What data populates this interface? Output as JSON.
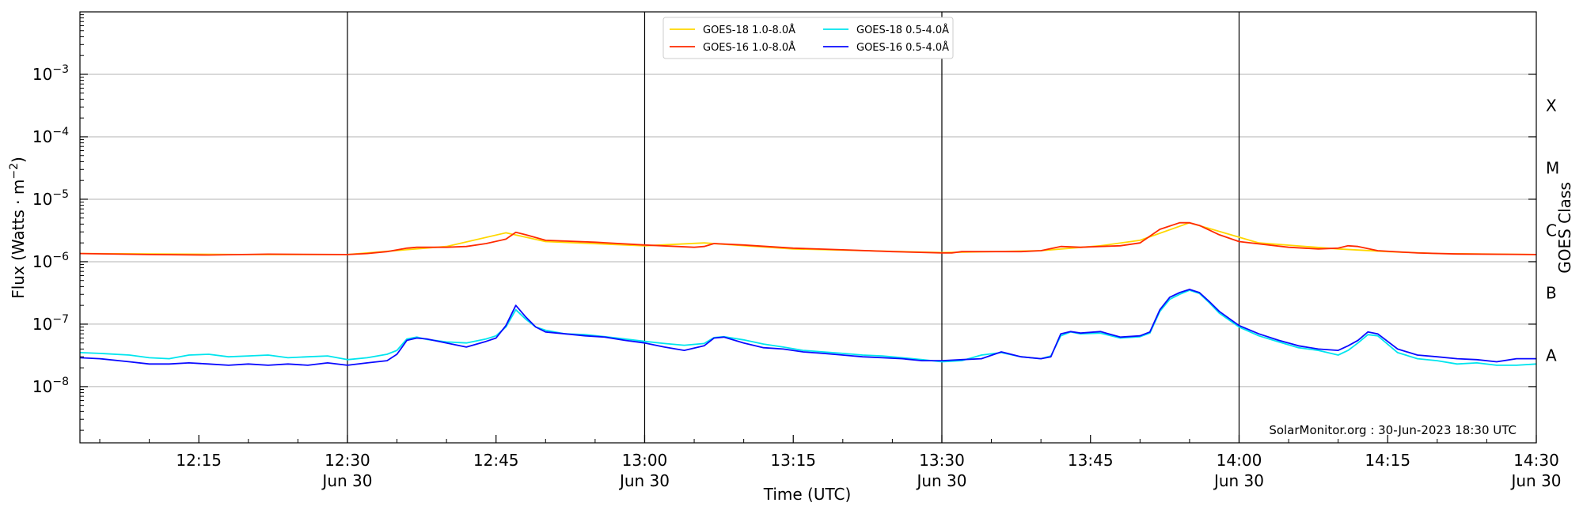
{
  "chart_data": {
    "type": "line",
    "xlabel": "Time (UTC)",
    "ylabel_base": "Flux (Watts · m",
    "ylabel_exp": "−2",
    "ylabel_end": ")",
    "right_label": "GOES Class",
    "credit": "SolarMonitor.org : 30-Jun-2023 18:30 UTC",
    "xlim_minutes": [
      723,
      870
    ],
    "ylim_log10": [
      -8.9,
      -2.0
    ],
    "y_scale": "log",
    "grid": "horizontal",
    "legend_position": "upper-center",
    "x_ticks": [
      {
        "minute": 735,
        "label": "12:15",
        "date": ""
      },
      {
        "minute": 750,
        "label": "12:30",
        "date": "Jun 30"
      },
      {
        "minute": 765,
        "label": "12:45",
        "date": ""
      },
      {
        "minute": 780,
        "label": "13:00",
        "date": "Jun 30"
      },
      {
        "minute": 795,
        "label": "13:15",
        "date": ""
      },
      {
        "minute": 810,
        "label": "13:30",
        "date": "Jun 30"
      },
      {
        "minute": 825,
        "label": "13:45",
        "date": ""
      },
      {
        "minute": 840,
        "label": "14:00",
        "date": "Jun 30"
      },
      {
        "minute": 855,
        "label": "14:15",
        "date": ""
      },
      {
        "minute": 870,
        "label": "14:30",
        "date": "Jun 30"
      }
    ],
    "vlines_minutes": [
      750,
      780,
      810,
      840
    ],
    "y_ticks": [
      {
        "exp": -8,
        "base": "10",
        "sup": "−8"
      },
      {
        "exp": -7,
        "base": "10",
        "sup": "−7"
      },
      {
        "exp": -6,
        "base": "10",
        "sup": "−6"
      },
      {
        "exp": -5,
        "base": "10",
        "sup": "−5"
      },
      {
        "exp": -4,
        "base": "10",
        "sup": "−4"
      },
      {
        "exp": -3,
        "base": "10",
        "sup": "−3"
      }
    ],
    "goes_classes": [
      {
        "label": "A",
        "exp": -7.5
      },
      {
        "label": "B",
        "exp": -6.5
      },
      {
        "label": "C",
        "exp": -5.5
      },
      {
        "label": "M",
        "exp": -4.5
      },
      {
        "label": "X",
        "exp": -3.5
      }
    ],
    "series": [
      {
        "name": "GOES-18 1.0-8.0Å",
        "color": "#ffd700",
        "x": [
          723,
          740,
          750,
          760,
          766,
          770,
          780,
          786,
          795,
          810,
          820,
          826,
          830,
          835,
          842,
          850,
          855,
          860,
          870
        ],
        "y": [
          1.35e-06,
          1.3e-06,
          1.3e-06,
          1.75e-06,
          2.9e-06,
          2.1e-06,
          1.8e-06,
          2e-06,
          1.6e-06,
          1.4e-06,
          1.5e-06,
          1.8e-06,
          2.2e-06,
          4.2e-06,
          2e-06,
          1.6e-06,
          1.45e-06,
          1.35e-06,
          1.3e-06
        ]
      },
      {
        "name": "GOES-16 1.0-8.0Å",
        "color": "#ff2a00",
        "x": [
          723,
          730,
          736,
          742,
          750,
          752,
          754,
          756,
          757,
          760,
          762,
          764,
          766,
          767,
          768,
          770,
          775,
          780,
          785,
          786,
          787,
          790,
          795,
          800,
          805,
          810,
          811,
          812,
          814,
          818,
          820,
          822,
          824,
          826,
          828,
          830,
          832,
          834,
          835,
          836,
          838,
          840,
          845,
          848,
          850,
          851,
          852,
          854,
          858,
          862,
          870
        ],
        "y": [
          1.35e-06,
          1.3e-06,
          1.28e-06,
          1.32e-06,
          1.3e-06,
          1.35e-06,
          1.45e-06,
          1.65e-06,
          1.7e-06,
          1.7e-06,
          1.75e-06,
          1.95e-06,
          2.3e-06,
          2.95e-06,
          2.7e-06,
          2.2e-06,
          2.05e-06,
          1.85e-06,
          1.7e-06,
          1.75e-06,
          1.95e-06,
          1.85e-06,
          1.65e-06,
          1.55e-06,
          1.45e-06,
          1.38e-06,
          1.38e-06,
          1.45e-06,
          1.45e-06,
          1.45e-06,
          1.5e-06,
          1.75e-06,
          1.7e-06,
          1.75e-06,
          1.8e-06,
          2e-06,
          3.3e-06,
          4.2e-06,
          4.2e-06,
          3.8e-06,
          2.7e-06,
          2.1e-06,
          1.7e-06,
          1.6e-06,
          1.65e-06,
          1.8e-06,
          1.75e-06,
          1.5e-06,
          1.38e-06,
          1.33e-06,
          1.3e-06
        ]
      },
      {
        "name": "GOES-18 0.5-4.0Å",
        "color": "#00e5ee",
        "x": [
          723,
          725,
          728,
          730,
          732,
          734,
          736,
          738,
          740,
          742,
          744,
          746,
          748,
          750,
          752,
          754,
          755,
          756,
          757,
          758,
          760,
          762,
          764,
          765,
          766,
          767,
          768,
          769,
          770,
          772,
          774,
          776,
          778,
          780,
          782,
          784,
          786,
          787,
          788,
          790,
          792,
          794,
          796,
          798,
          800,
          802,
          804,
          806,
          808,
          810,
          812,
          814,
          816,
          818,
          820,
          821,
          822,
          823,
          824,
          826,
          828,
          830,
          831,
          832,
          833,
          834,
          835,
          836,
          837,
          838,
          840,
          842,
          844,
          846,
          848,
          850,
          851,
          852,
          853,
          854,
          856,
          858,
          860,
          862,
          864,
          866,
          868,
          870
        ],
        "y": [
          3.5e-08,
          3.4e-08,
          3.2e-08,
          2.9e-08,
          2.8e-08,
          3.2e-08,
          3.3e-08,
          3e-08,
          3.1e-08,
          3.2e-08,
          2.9e-08,
          3e-08,
          3.1e-08,
          2.7e-08,
          2.9e-08,
          3.3e-08,
          3.8e-08,
          5.8e-08,
          6.2e-08,
          5.7e-08,
          5.2e-08,
          5e-08,
          5.8e-08,
          6.5e-08,
          9e-08,
          1.7e-07,
          1.2e-07,
          9e-08,
          8e-08,
          7e-08,
          6.8e-08,
          6.3e-08,
          5.8e-08,
          5.3e-08,
          4.9e-08,
          4.6e-08,
          4.9e-08,
          6.1e-08,
          6.3e-08,
          5.6e-08,
          4.8e-08,
          4.3e-08,
          3.8e-08,
          3.6e-08,
          3.4e-08,
          3.2e-08,
          3.1e-08,
          2.9e-08,
          2.7e-08,
          2.5e-08,
          2.6e-08,
          3.2e-08,
          3.5e-08,
          3e-08,
          2.8e-08,
          3.1e-08,
          6.5e-08,
          7.5e-08,
          7e-08,
          7.2e-08,
          6e-08,
          6.3e-08,
          7.2e-08,
          1.6e-07,
          2.5e-07,
          3e-07,
          3.5e-07,
          3.1e-07,
          2.2e-07,
          1.5e-07,
          9e-08,
          6.5e-08,
          5.2e-08,
          4.2e-08,
          3.8e-08,
          3.2e-08,
          3.8e-08,
          5e-08,
          6.8e-08,
          6.5e-08,
          3.5e-08,
          2.8e-08,
          2.6e-08,
          2.3e-08,
          2.4e-08,
          2.2e-08,
          2.2e-08,
          2.3e-08
        ]
      },
      {
        "name": "GOES-16 0.5-4.0Å",
        "color": "#0a0aff",
        "x": [
          723,
          725,
          728,
          730,
          732,
          734,
          736,
          738,
          740,
          742,
          744,
          746,
          748,
          750,
          752,
          754,
          755,
          756,
          757,
          758,
          760,
          762,
          764,
          765,
          766,
          767,
          768,
          769,
          770,
          772,
          774,
          776,
          778,
          780,
          782,
          784,
          786,
          787,
          788,
          790,
          792,
          794,
          796,
          798,
          800,
          802,
          804,
          806,
          808,
          810,
          812,
          814,
          816,
          818,
          820,
          821,
          822,
          823,
          824,
          826,
          828,
          830,
          831,
          832,
          833,
          834,
          835,
          836,
          837,
          838,
          840,
          842,
          844,
          846,
          848,
          850,
          851,
          852,
          853,
          854,
          856,
          858,
          860,
          862,
          864,
          866,
          868,
          870
        ],
        "y": [
          2.9e-08,
          2.8e-08,
          2.5e-08,
          2.3e-08,
          2.3e-08,
          2.4e-08,
          2.3e-08,
          2.2e-08,
          2.3e-08,
          2.2e-08,
          2.3e-08,
          2.2e-08,
          2.4e-08,
          2.2e-08,
          2.4e-08,
          2.6e-08,
          3.3e-08,
          5.5e-08,
          6e-08,
          5.8e-08,
          5e-08,
          4.3e-08,
          5.3e-08,
          6e-08,
          9.5e-08,
          2e-07,
          1.3e-07,
          9e-08,
          7.5e-08,
          7e-08,
          6.5e-08,
          6.2e-08,
          5.5e-08,
          5e-08,
          4.3e-08,
          3.8e-08,
          4.5e-08,
          6e-08,
          6.2e-08,
          5e-08,
          4.2e-08,
          4e-08,
          3.6e-08,
          3.4e-08,
          3.2e-08,
          3e-08,
          2.9e-08,
          2.8e-08,
          2.6e-08,
          2.6e-08,
          2.7e-08,
          2.8e-08,
          3.6e-08,
          3e-08,
          2.8e-08,
          3e-08,
          7e-08,
          7.6e-08,
          7.2e-08,
          7.6e-08,
          6.2e-08,
          6.5e-08,
          7.5e-08,
          1.7e-07,
          2.7e-07,
          3.2e-07,
          3.6e-07,
          3.2e-07,
          2.3e-07,
          1.6e-07,
          9.5e-08,
          7e-08,
          5.5e-08,
          4.5e-08,
          4e-08,
          3.8e-08,
          4.5e-08,
          5.5e-08,
          7.5e-08,
          7e-08,
          4e-08,
          3.2e-08,
          3e-08,
          2.8e-08,
          2.7e-08,
          2.5e-08,
          2.8e-08,
          2.8e-08
        ]
      }
    ]
  }
}
